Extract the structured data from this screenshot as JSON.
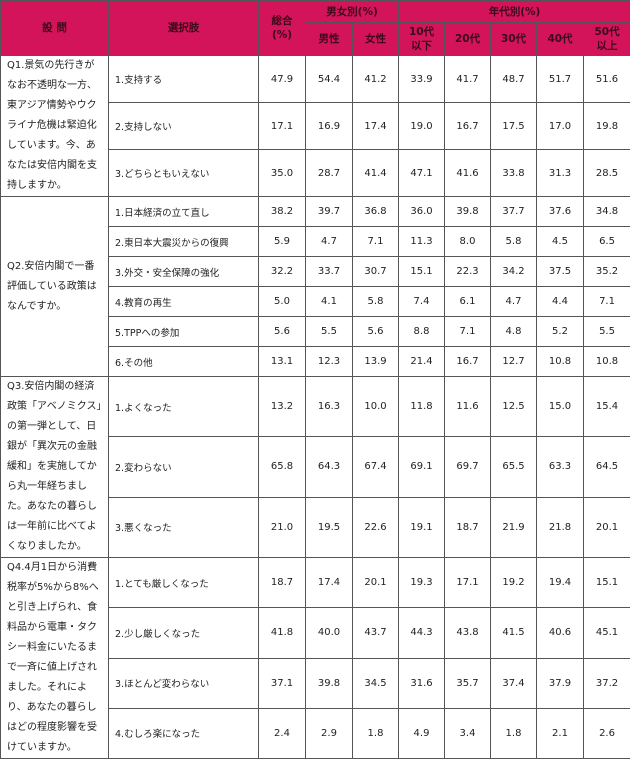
{
  "header": {
    "question": "設 問",
    "choice": "選択肢",
    "total": "総合\n(%)",
    "gender_group": "男女別(%)",
    "age_group": "年代別(%)",
    "columns": [
      "男性",
      "女性",
      "10代\n以下",
      "20代",
      "30代",
      "40代",
      "50代\n以上"
    ]
  },
  "accent_color": "#d4145a",
  "questions": [
    {
      "text": "Q1.景気の先行きがなお不透明な一方、東アジア情勢やウクライナ危機は緊迫化しています。今、あなたは安倍内閣を支持しますか。",
      "rows": [
        {
          "choice": "1.支持する",
          "values": [
            "47.9",
            "54.4",
            "41.2",
            "33.9",
            "41.7",
            "48.7",
            "51.7",
            "51.6"
          ]
        },
        {
          "choice": "2.支持しない",
          "values": [
            "17.1",
            "16.9",
            "17.4",
            "19.0",
            "16.7",
            "17.5",
            "17.0",
            "19.8"
          ]
        },
        {
          "choice": "3.どちらともいえない",
          "values": [
            "35.0",
            "28.7",
            "41.4",
            "47.1",
            "41.6",
            "33.8",
            "31.3",
            "28.5"
          ]
        }
      ]
    },
    {
      "text": "Q2.安倍内閣で一番評価している政策はなんですか。",
      "rows": [
        {
          "choice": "1.日本経済の立て直し",
          "values": [
            "38.2",
            "39.7",
            "36.8",
            "36.0",
            "39.8",
            "37.7",
            "37.6",
            "34.8"
          ]
        },
        {
          "choice": "2.東日本大震災からの復興",
          "values": [
            "5.9",
            "4.7",
            "7.1",
            "11.3",
            "8.0",
            "5.8",
            "4.5",
            "6.5"
          ]
        },
        {
          "choice": "3.外交・安全保障の強化",
          "values": [
            "32.2",
            "33.7",
            "30.7",
            "15.1",
            "22.3",
            "34.2",
            "37.5",
            "35.2"
          ]
        },
        {
          "choice": "4.教育の再生",
          "values": [
            "5.0",
            "4.1",
            "5.8",
            "7.4",
            "6.1",
            "4.7",
            "4.4",
            "7.1"
          ]
        },
        {
          "choice": "5.TPPへの参加",
          "values": [
            "5.6",
            "5.5",
            "5.6",
            "8.8",
            "7.1",
            "4.8",
            "5.2",
            "5.5"
          ]
        },
        {
          "choice": "6.その他",
          "values": [
            "13.1",
            "12.3",
            "13.9",
            "21.4",
            "16.7",
            "12.7",
            "10.8",
            "10.8"
          ]
        }
      ]
    },
    {
      "text": "Q3.安倍内閣の経済政策「アベノミクス」の第一弾として、日銀が「異次元の金融緩和」を実施してから丸一年経ちました。あなたの暮らしは一年前に比べてよくなりましたか。",
      "rows": [
        {
          "choice": "1.よくなった",
          "values": [
            "13.2",
            "16.3",
            "10.0",
            "11.8",
            "11.6",
            "12.5",
            "15.0",
            "15.4"
          ]
        },
        {
          "choice": "2.変わらない",
          "values": [
            "65.8",
            "64.3",
            "67.4",
            "69.1",
            "69.7",
            "65.5",
            "63.3",
            "64.5"
          ]
        },
        {
          "choice": "3.悪くなった",
          "values": [
            "21.0",
            "19.5",
            "22.6",
            "19.1",
            "18.7",
            "21.9",
            "21.8",
            "20.1"
          ]
        }
      ]
    },
    {
      "text": "Q4.4月1日から消費税率が5%から8%へと引き上げられ、食料品から電車・タクシー料金にいたるまで一斉に値上げされました。それにより、あなたの暮らしはどの程度影響を受けていますか。",
      "rows": [
        {
          "choice": "1.とても厳しくなった",
          "values": [
            "18.7",
            "17.4",
            "20.1",
            "19.3",
            "17.1",
            "19.2",
            "19.4",
            "15.1"
          ]
        },
        {
          "choice": "2.少し厳しくなった",
          "values": [
            "41.8",
            "40.0",
            "43.7",
            "44.3",
            "43.8",
            "41.5",
            "40.6",
            "45.1"
          ]
        },
        {
          "choice": "3.ほとんど変わらない",
          "values": [
            "37.1",
            "39.8",
            "34.5",
            "31.6",
            "35.7",
            "37.4",
            "37.9",
            "37.2"
          ]
        },
        {
          "choice": "4.むしろ楽になった",
          "values": [
            "2.4",
            "2.9",
            "1.8",
            "4.9",
            "3.4",
            "1.8",
            "2.1",
            "2.6"
          ]
        }
      ]
    }
  ]
}
